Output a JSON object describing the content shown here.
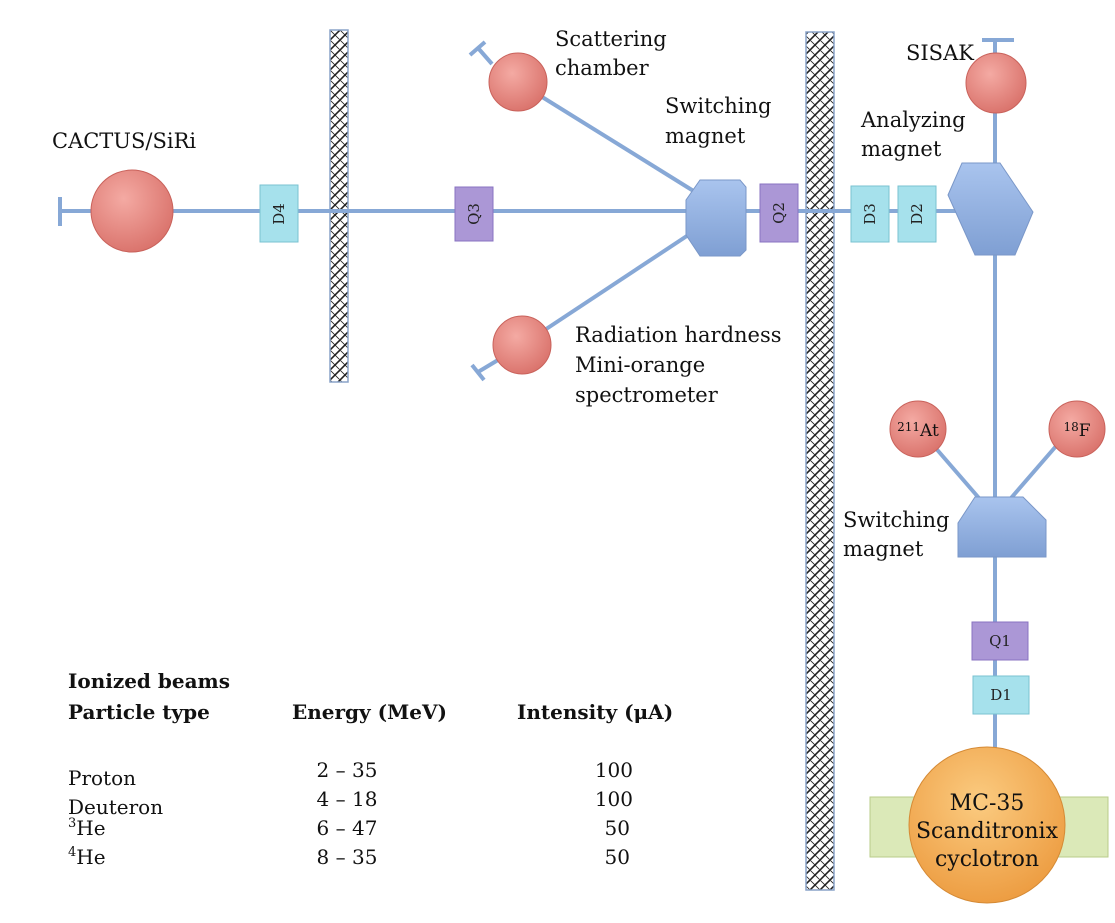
{
  "stations": {
    "cactus": "CACTUS/SiRi",
    "scattering_1": "Scattering",
    "scattering_2": "chamber",
    "sisak": "SISAK",
    "radiation_1": "Radiation hardness",
    "radiation_2": "Mini-orange",
    "radiation_3": "spectrometer",
    "switching_top_1": "Switching",
    "switching_top_2": "magnet",
    "analyzing_1": "Analyzing",
    "analyzing_2": "magnet",
    "switching_bottom_1": "Switching",
    "switching_bottom_2": "magnet",
    "at211_mass": "211",
    "at211_sym": "At",
    "f18_mass": "18",
    "f18_sym": "F"
  },
  "elements": {
    "d4": "D4",
    "q3": "Q3",
    "q2": "Q2",
    "d3": "D3",
    "d2": "D2",
    "q1": "Q1",
    "d1": "D1"
  },
  "cyclotron": {
    "line1": "MC-35",
    "line2": "Scanditronix",
    "line3": "cyclotron"
  },
  "beams_table": {
    "title": "Ionized beams",
    "headers": [
      "Particle type",
      "Energy (MeV)",
      "Intensity (μA)"
    ],
    "rows": [
      {
        "mass": "",
        "particle": "Proton",
        "energy": "2 – 35",
        "intensity": "100"
      },
      {
        "mass": "",
        "particle": "Deuteron",
        "energy": "4 – 18",
        "intensity": "100"
      },
      {
        "mass": "3",
        "particle": "He",
        "energy": "6 – 47",
        "intensity": "50"
      },
      {
        "mass": "4",
        "particle": "He",
        "energy": "8 – 35",
        "intensity": "50"
      }
    ]
  },
  "colors": {
    "beamline": "#87a8d6",
    "station": "#e98c84",
    "dipole": "#a6e1ec",
    "quadrupole": "#ab97d6",
    "magnet": "#94b4e4",
    "cyclotron": "#f3ad5a",
    "cyclotron_base": "#dbe9b8"
  }
}
